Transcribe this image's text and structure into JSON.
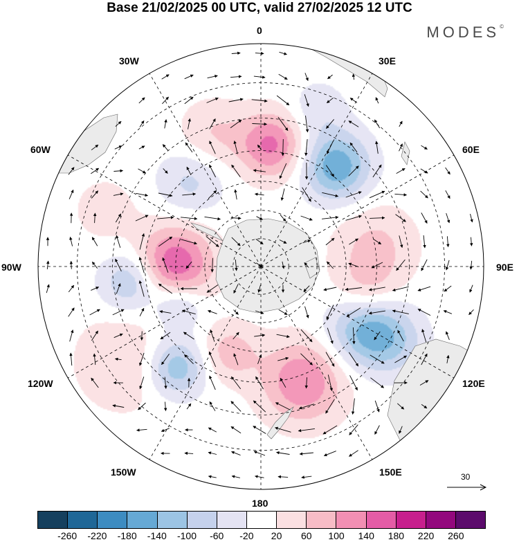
{
  "title": "Base 21/02/2025 00 UTC, valid 27/02/2025 12 UTC",
  "brand": "MODES",
  "brand_mark": "©",
  "meridian_labels": {
    "lon0": "0",
    "lon30e": "30E",
    "lon60e": "60E",
    "lon90e": "90E",
    "lon120e": "120E",
    "lon150e": "150E",
    "lon180": "180",
    "lon150w": "150W",
    "lon120w": "120W",
    "lon90w": "90W",
    "lon60w": "60W",
    "lon30w": "30W"
  },
  "reference_vector": {
    "value": "30"
  },
  "colorbar": {
    "ticks": [
      "-260",
      "-220",
      "-180",
      "-140",
      "-100",
      "-60",
      "-20",
      "20",
      "60",
      "100",
      "140",
      "180",
      "220",
      "260"
    ],
    "colors": [
      "#15405e",
      "#1f6797",
      "#3d8cc1",
      "#66a9d5",
      "#9cc4e4",
      "#c5d1ec",
      "#e4e3f3",
      "#ffffff",
      "#fbe0e2",
      "#f7bcc6",
      "#f28fb3",
      "#e45ca6",
      "#c71f8d",
      "#93087d",
      "#5c0b6c"
    ]
  },
  "map": {
    "center_lat": -90,
    "projection": "south polar stereographic",
    "land_color": "#ebebeb",
    "anomaly_features": [
      {
        "lat": -48,
        "lon": 5,
        "value": 150,
        "sigma": 8
      },
      {
        "lat": -47,
        "lon": 37,
        "value": -175,
        "sigma": 8
      },
      {
        "lat": -60,
        "lon": -88,
        "value": 175,
        "sigma": 9
      },
      {
        "lat": -45,
        "lon": -97,
        "value": -110,
        "sigma": 7
      },
      {
        "lat": -48,
        "lon": 120,
        "value": -170,
        "sigma": 9
      },
      {
        "lat": -48,
        "lon": 160,
        "value": 140,
        "sigma": 10
      },
      {
        "lat": -58,
        "lon": -160,
        "value": 80,
        "sigma": 7
      },
      {
        "lat": -45,
        "lon": -140,
        "value": -140,
        "sigma": 7
      },
      {
        "lat": -50,
        "lon": 80,
        "value": 70,
        "sigma": 10
      },
      {
        "lat": -52,
        "lon": 105,
        "value": 85,
        "sigma": 8
      },
      {
        "lat": -42,
        "lon": -20,
        "value": 60,
        "sigma": 8
      },
      {
        "lat": -52,
        "lon": -40,
        "value": -70,
        "sigma": 8
      },
      {
        "lat": -58,
        "lon": -115,
        "value": -90,
        "sigma": 6
      },
      {
        "lat": -35,
        "lon": -125,
        "value": 60,
        "sigma": 12
      },
      {
        "lat": -35,
        "lon": 20,
        "value": -50,
        "sigma": 7
      },
      {
        "lat": -38,
        "lon": 120,
        "value": -60,
        "sigma": 8
      },
      {
        "lat": -35,
        "lon": -70,
        "value": 40,
        "sigma": 8
      }
    ]
  }
}
